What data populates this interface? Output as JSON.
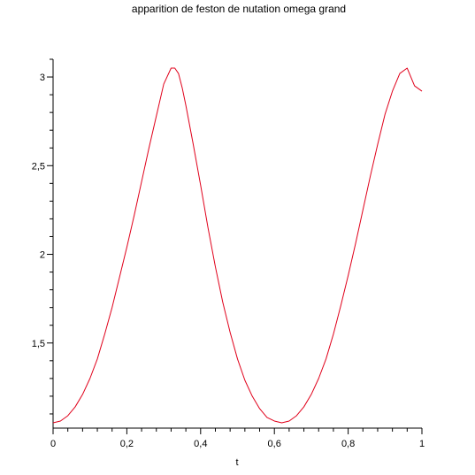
{
  "chart_data": {
    "type": "line",
    "title": "apparition de feston de nutation omega grand",
    "xlabel": "t",
    "ylabel": "",
    "xlim": [
      0,
      1
    ],
    "ylim": [
      1.02,
      3.1
    ],
    "x_ticks": [
      {
        "value": 0,
        "label": "0"
      },
      {
        "value": 0.2,
        "label": "0,2"
      },
      {
        "value": 0.4,
        "label": "0,4"
      },
      {
        "value": 0.6,
        "label": "0,6"
      },
      {
        "value": 0.8,
        "label": "0,8"
      },
      {
        "value": 1,
        "label": "1"
      }
    ],
    "y_ticks": [
      {
        "value": 1.5,
        "label": "1,5"
      },
      {
        "value": 2,
        "label": "2"
      },
      {
        "value": 2.5,
        "label": "2,5"
      },
      {
        "value": 3,
        "label": "3"
      }
    ],
    "series": [
      {
        "color": "#e0001a",
        "x": [
          0,
          0.02,
          0.04,
          0.06,
          0.08,
          0.1,
          0.12,
          0.14,
          0.16,
          0.18,
          0.2,
          0.22,
          0.24,
          0.26,
          0.28,
          0.3,
          0.32,
          0.33,
          0.34,
          0.35,
          0.36,
          0.38,
          0.4,
          0.42,
          0.44,
          0.46,
          0.48,
          0.5,
          0.52,
          0.54,
          0.56,
          0.58,
          0.6,
          0.62,
          0.64,
          0.66,
          0.68,
          0.7,
          0.72,
          0.74,
          0.76,
          0.78,
          0.8,
          0.82,
          0.84,
          0.86,
          0.88,
          0.9,
          0.92,
          0.94,
          0.96,
          0.98,
          1.0
        ],
        "y": [
          1.05,
          1.06,
          1.09,
          1.14,
          1.21,
          1.3,
          1.41,
          1.55,
          1.7,
          1.87,
          2.04,
          2.22,
          2.41,
          2.6,
          2.78,
          2.96,
          3.05,
          3.05,
          3.02,
          2.94,
          2.84,
          2.62,
          2.39,
          2.15,
          1.93,
          1.73,
          1.56,
          1.41,
          1.29,
          1.2,
          1.13,
          1.08,
          1.06,
          1.05,
          1.06,
          1.09,
          1.14,
          1.21,
          1.3,
          1.41,
          1.55,
          1.71,
          1.88,
          2.06,
          2.25,
          2.44,
          2.62,
          2.79,
          2.92,
          3.02,
          3.05,
          2.95,
          2.92
        ]
      }
    ]
  }
}
